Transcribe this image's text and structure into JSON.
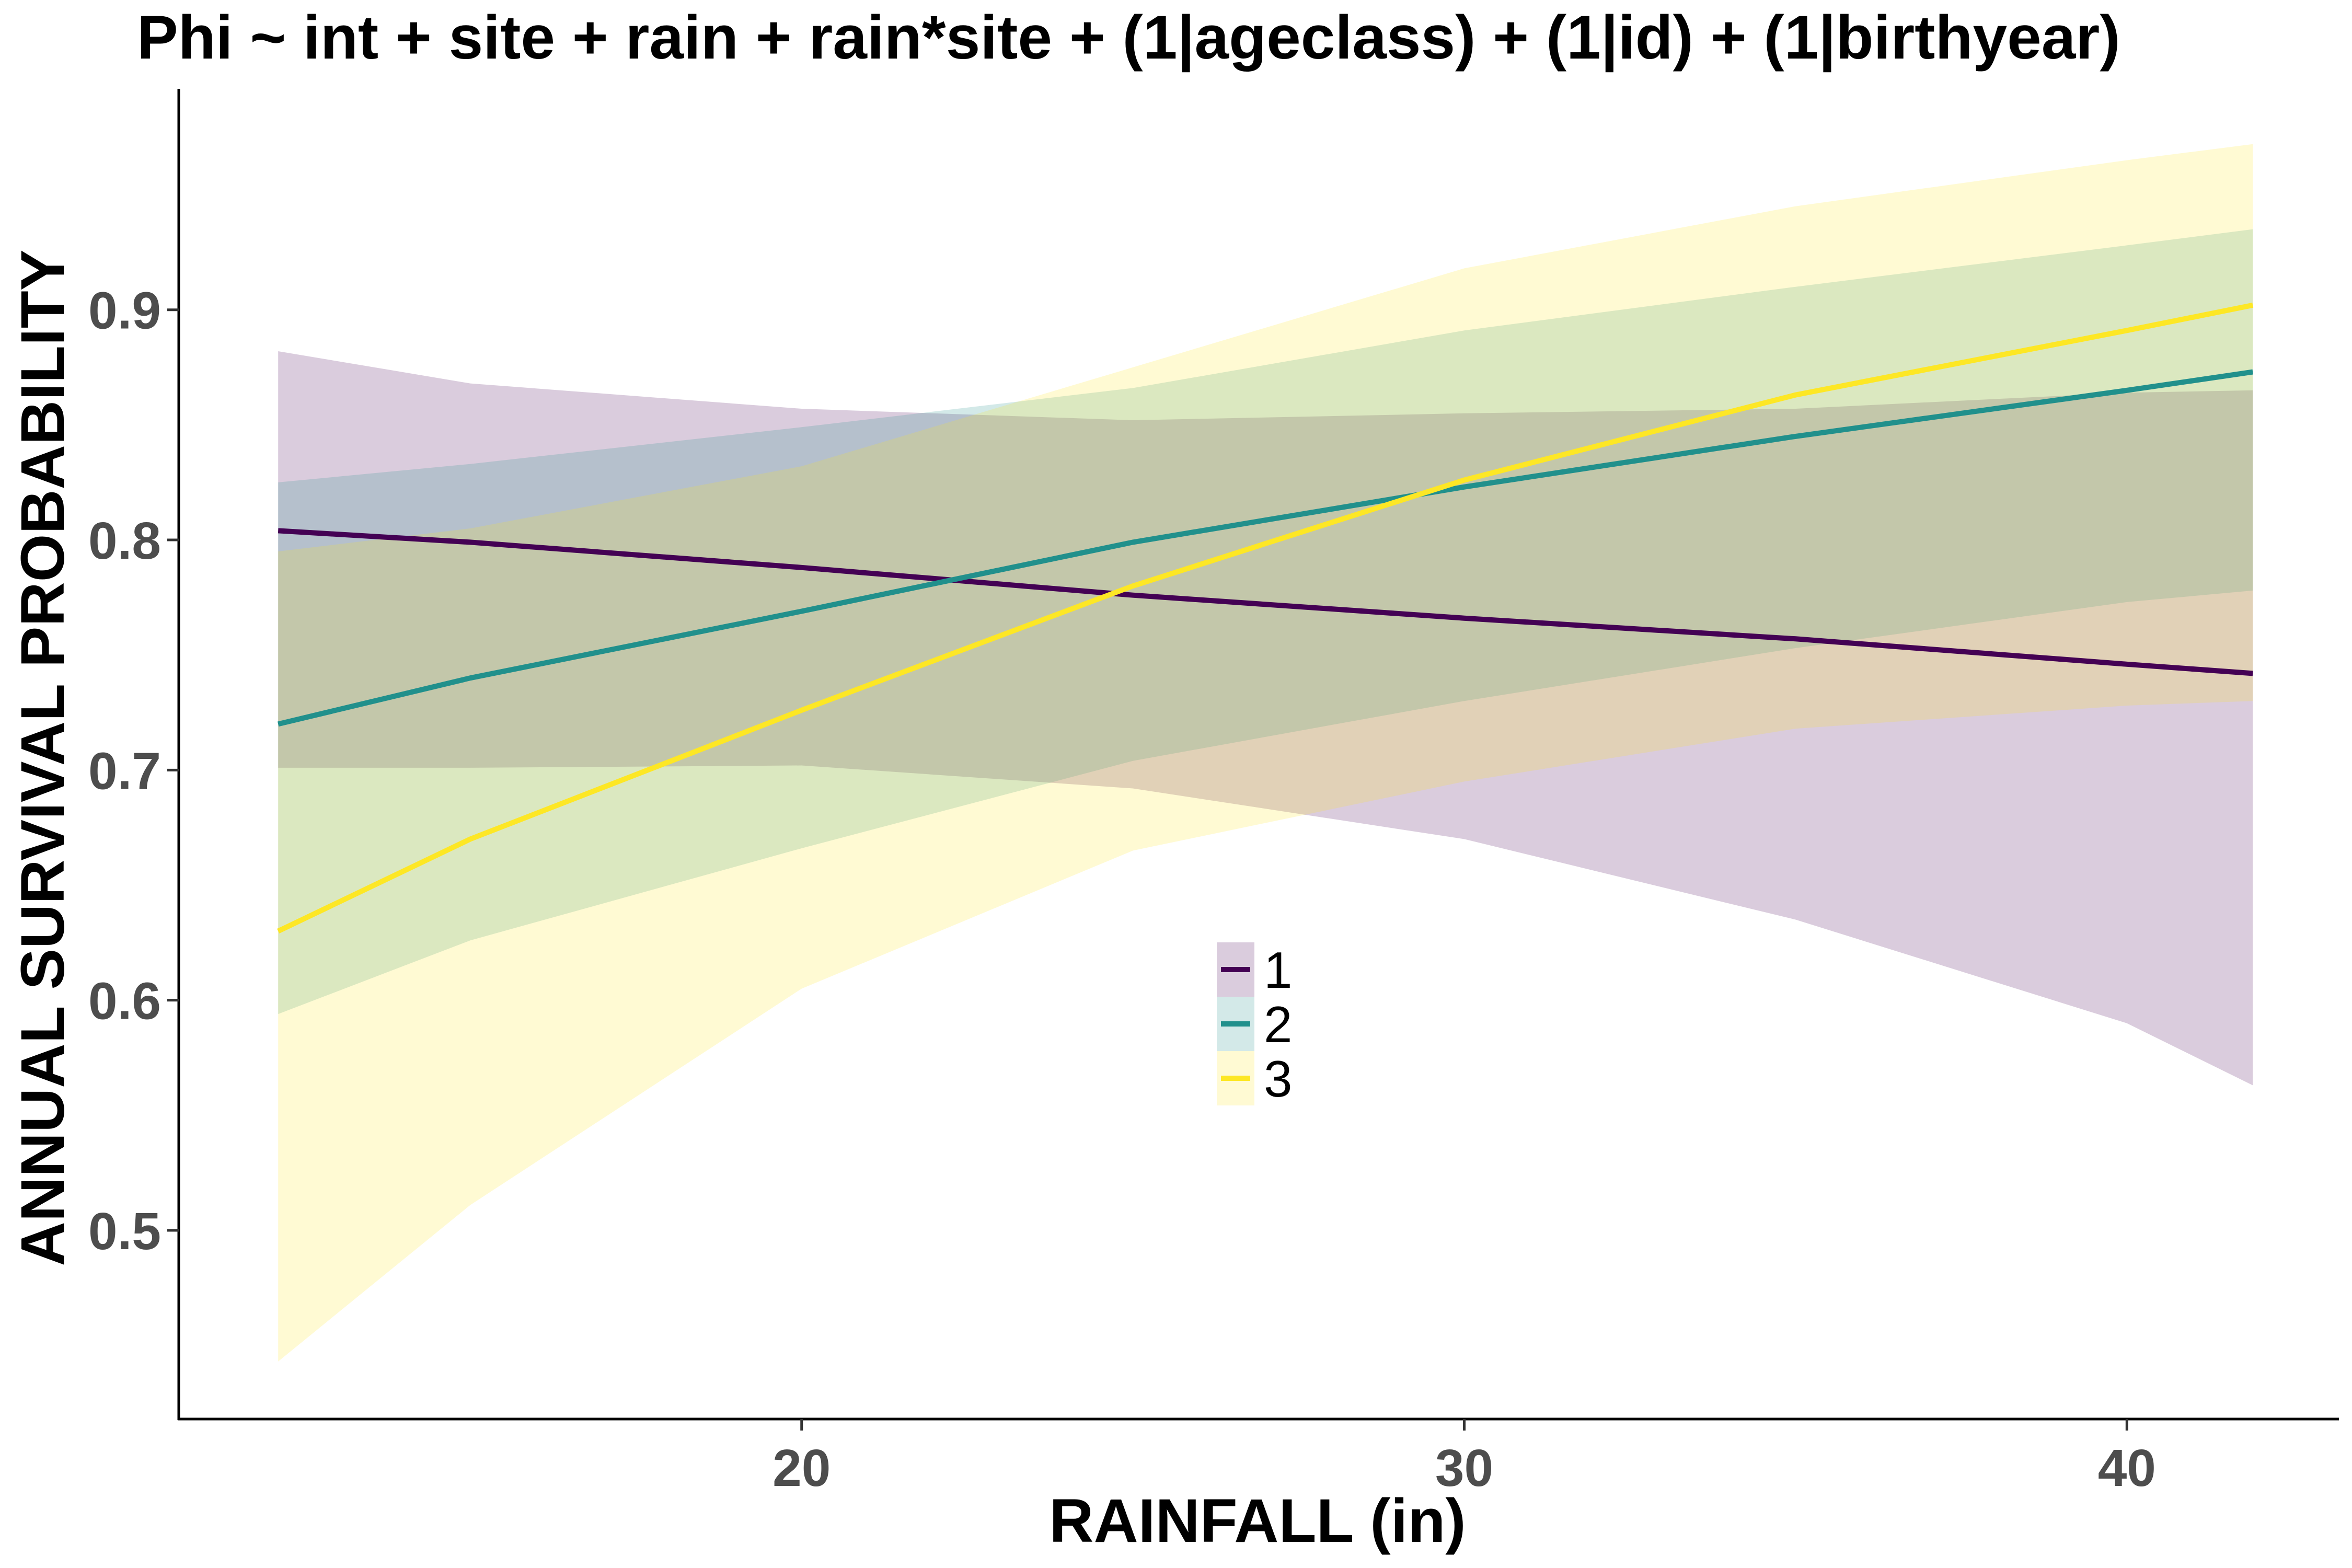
{
  "chart_data": {
    "type": "line",
    "title": "Phi ~ int + site + rain + rain*site + (1|ageclass) + (1|id) + (1|birthyear)",
    "xlabel": "RAINFALL (in)",
    "ylabel": "ANNUAL SURVIVAL PROBABILITY",
    "xlim": [
      10.6,
      43.2
    ],
    "ylim": [
      0.418,
      0.996
    ],
    "xticks": [
      20,
      30,
      40
    ],
    "yticks": [
      0.5,
      0.6,
      0.7,
      0.8,
      0.9
    ],
    "xtick_labels": [
      "20",
      "30",
      "40"
    ],
    "ytick_labels": [
      "0.5",
      "0.6",
      "0.7",
      "0.8",
      "0.9"
    ],
    "grid": false,
    "legend_position": "center",
    "series": [
      {
        "name": "1",
        "color": "#440154",
        "band_color": "#440154",
        "x": [
          12.1,
          15,
          20,
          25,
          30,
          35,
          40,
          41.9
        ],
        "y": [
          0.804,
          0.799,
          0.788,
          0.776,
          0.766,
          0.757,
          0.746,
          0.742
        ],
        "lower": [
          0.701,
          0.701,
          0.702,
          0.692,
          0.67,
          0.635,
          0.59,
          0.563
        ],
        "upper": [
          0.882,
          0.868,
          0.857,
          0.852,
          0.855,
          0.857,
          0.864,
          0.865
        ]
      },
      {
        "name": "2",
        "color": "#21908C",
        "band_color": "#21908C",
        "x": [
          12.1,
          15,
          20,
          25,
          30,
          35,
          40,
          41.9
        ],
        "y": [
          0.72,
          0.74,
          0.769,
          0.799,
          0.823,
          0.845,
          0.865,
          0.873
        ],
        "lower": [
          0.594,
          0.626,
          0.666,
          0.704,
          0.73,
          0.753,
          0.773,
          0.778
        ],
        "upper": [
          0.825,
          0.833,
          0.849,
          0.866,
          0.891,
          0.91,
          0.928,
          0.935
        ]
      },
      {
        "name": "3",
        "color": "#FDE725",
        "band_color": "#FDE725",
        "x": [
          12.1,
          15,
          20,
          25,
          30,
          35,
          40,
          41.9
        ],
        "y": [
          0.63,
          0.67,
          0.726,
          0.78,
          0.826,
          0.863,
          0.891,
          0.902
        ],
        "lower": [
          0.443,
          0.511,
          0.605,
          0.665,
          0.695,
          0.718,
          0.728,
          0.73
        ],
        "upper": [
          0.795,
          0.805,
          0.832,
          0.875,
          0.918,
          0.945,
          0.965,
          0.972
        ]
      }
    ]
  }
}
